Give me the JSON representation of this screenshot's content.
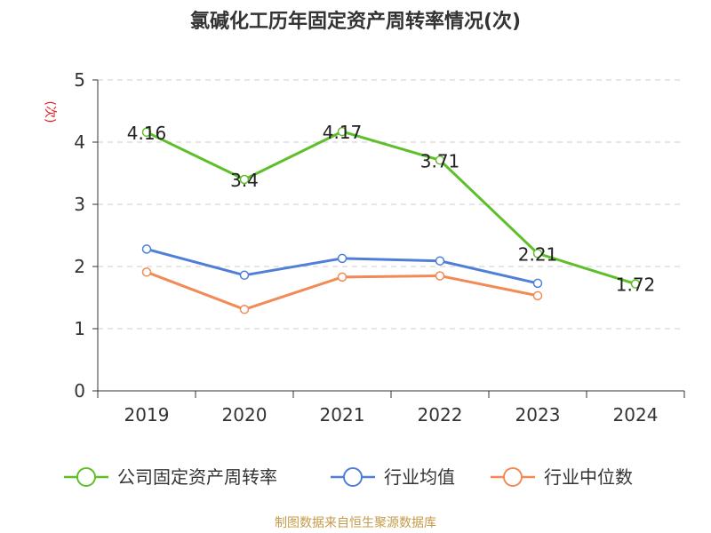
{
  "chart_data": {
    "type": "line",
    "title": "氯碱化工历年固定资产周转率情况(次)",
    "ylabel": "(次)",
    "xlabel": "",
    "categories": [
      "2019",
      "2020",
      "2021",
      "2022",
      "2023",
      "2024"
    ],
    "ylim": [
      0,
      5
    ],
    "yticks": [
      "0",
      "1",
      "2",
      "3",
      "4",
      "5"
    ],
    "grid": true,
    "legend_position": "bottom",
    "series": [
      {
        "name": "公司固定资产周转率",
        "values": [
          4.16,
          3.4,
          4.17,
          3.71,
          2.21,
          1.72
        ],
        "labels": [
          "4.16",
          "3.4",
          "4.17",
          "3.71",
          "2.21",
          "1.72"
        ],
        "color": "#5fbf2a"
      },
      {
        "name": "行业均值",
        "values": [
          2.28,
          1.86,
          2.13,
          2.09,
          1.73,
          null
        ],
        "color": "#4f7fd6"
      },
      {
        "name": "行业中位数",
        "values": [
          1.91,
          1.31,
          1.83,
          1.85,
          1.53,
          null
        ],
        "color": "#f28a55"
      }
    ]
  },
  "footer": {
    "source": "制图数据来自恒生聚源数据库"
  }
}
